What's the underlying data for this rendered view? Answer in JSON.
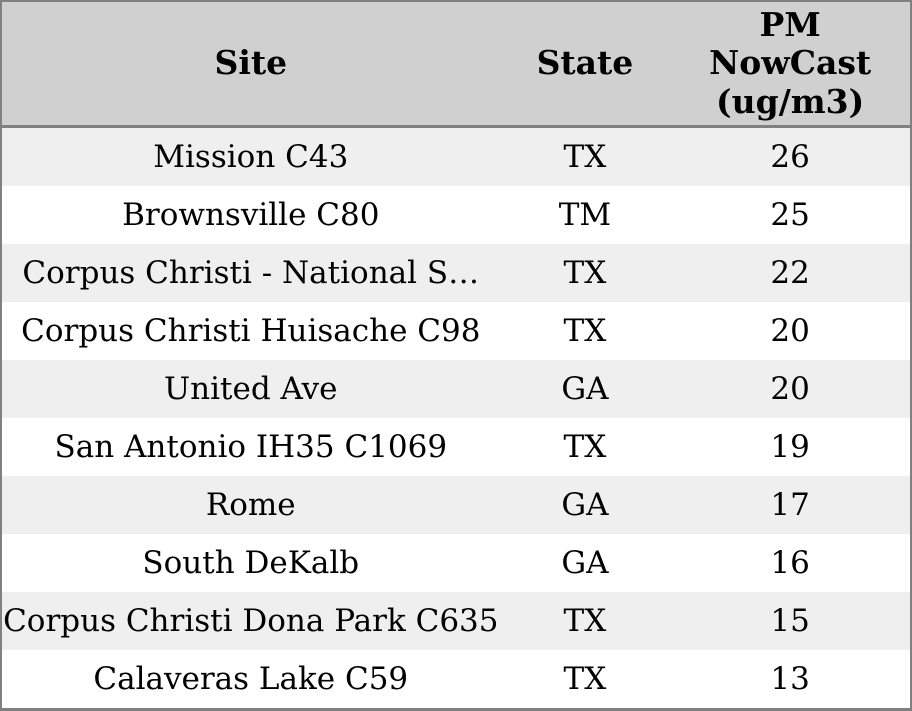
{
  "table": {
    "header": {
      "site": "Site",
      "state": "State",
      "pm_lines": [
        "PM",
        "NowCast",
        "(ug/m3)"
      ]
    },
    "rows": [
      {
        "site": "Mission C43",
        "state": "TX",
        "pm": "26"
      },
      {
        "site": "Brownsville C80",
        "state": "TM",
        "pm": "25"
      },
      {
        "site": "Corpus Christi - National S…",
        "state": "TX",
        "pm": "22"
      },
      {
        "site": "Corpus Christi Huisache C98",
        "state": "TX",
        "pm": "20"
      },
      {
        "site": "United Ave",
        "state": "GA",
        "pm": "20"
      },
      {
        "site": "San Antonio IH35 C1069",
        "state": "TX",
        "pm": "19"
      },
      {
        "site": "Rome",
        "state": "GA",
        "pm": "17"
      },
      {
        "site": "South DeKalb",
        "state": "GA",
        "pm": "16"
      },
      {
        "site": "Corpus Christi Dona Park C635",
        "state": "TX",
        "pm": "15"
      },
      {
        "site": "Calaveras Lake C59",
        "state": "TX",
        "pm": "13"
      }
    ],
    "colors": {
      "border_color": "#808080",
      "header_bg": "#d0d0d0",
      "row_odd_bg": "#efefef",
      "row_even_bg": "#ffffff",
      "text_color": "#000000"
    }
  },
  "chart_data": {
    "type": "table",
    "title": "",
    "columns": [
      "Site",
      "State",
      "PM NowCast (ug/m3)"
    ],
    "rows": [
      [
        "Mission C43",
        "TX",
        26
      ],
      [
        "Brownsville C80",
        "TM",
        25
      ],
      [
        "Corpus Christi - National S…",
        "TX",
        22
      ],
      [
        "Corpus Christi Huisache C98",
        "TX",
        20
      ],
      [
        "United Ave",
        "GA",
        20
      ],
      [
        "San Antonio IH35 C1069",
        "TX",
        19
      ],
      [
        "Rome",
        "GA",
        17
      ],
      [
        "South DeKalb",
        "GA",
        16
      ],
      [
        "Corpus Christi Dona Park C635",
        "TX",
        15
      ],
      [
        "Calaveras Lake C59",
        "TX",
        13
      ]
    ],
    "layout_hints": {
      "striped_rows": true,
      "header_bold": true,
      "alignment": "center"
    }
  }
}
